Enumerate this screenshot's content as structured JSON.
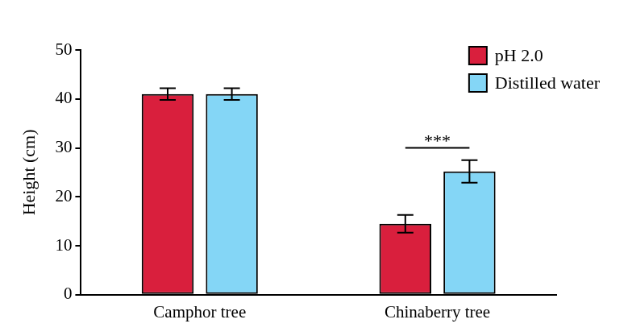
{
  "chart_data": {
    "type": "bar",
    "y_label": "Height (cm)",
    "categories": [
      "Camphor tree",
      "Chinaberry tree"
    ],
    "series": [
      {
        "name": "pH 2.0",
        "color": "#d91f3d",
        "values": [
          41.0,
          14.5
        ],
        "errors": [
          1.2,
          1.8
        ]
      },
      {
        "name": "Distilled water",
        "color": "#84d6f6",
        "values": [
          41.0,
          25.2
        ],
        "errors": [
          1.2,
          2.3
        ]
      }
    ],
    "ylim": [
      0,
      50
    ],
    "yticks": [
      0,
      10,
      20,
      30,
      40,
      50
    ],
    "grid": false,
    "legend": "upper right",
    "annotations": [
      {
        "text": "***",
        "category": "Chinaberry tree",
        "y": 30
      }
    ]
  }
}
